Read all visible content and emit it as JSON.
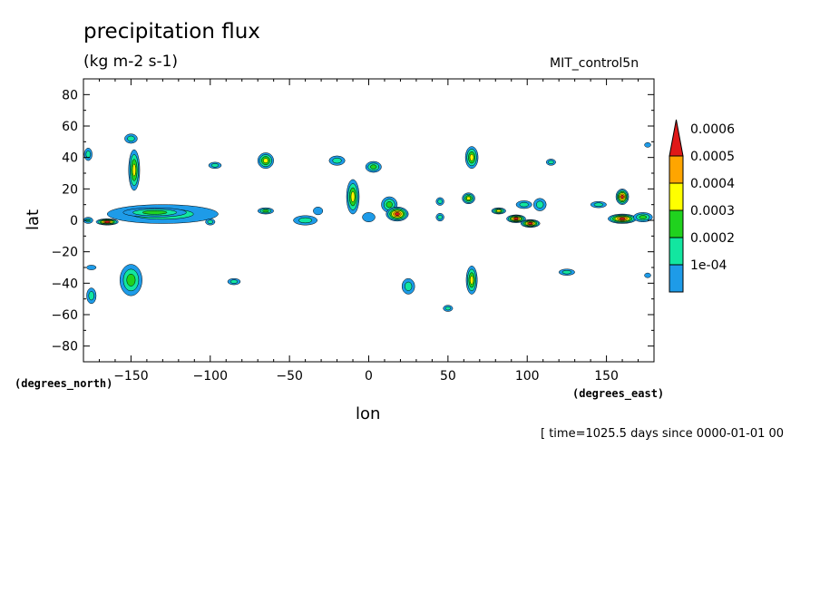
{
  "chart_data": {
    "type": "heatmap",
    "title": "precipitation flux",
    "units": "(kg m-2 s-1)",
    "dataset": "MIT_control5n",
    "xlabel": "lon",
    "ylabel": "lat",
    "xlabel_extra": "(degrees_east)",
    "ylabel_extra": "(degrees_north)",
    "timestamp": "[ time=1025.5 days since 0000-01-01 00",
    "xlim": [
      -180,
      180
    ],
    "ylim": [
      -90,
      90
    ],
    "xticks": [
      -150,
      -100,
      -50,
      0,
      50,
      100,
      150
    ],
    "yticks": [
      80,
      60,
      40,
      20,
      0,
      -20,
      -40,
      -60,
      -80
    ],
    "levels": [
      "1e-04",
      "0.0002",
      "0.0003",
      "0.0004",
      "0.0005",
      "0.0006"
    ],
    "colors": [
      "#1e9be8",
      "#12e6a0",
      "#20d21e",
      "#ffff00",
      "#ffa500",
      "#e01818"
    ],
    "blobs": [
      {
        "lon": -177,
        "lat": 42,
        "w": 5,
        "h": 8,
        "level": 1
      },
      {
        "lon": -177,
        "lat": 0,
        "w": 6,
        "h": 4,
        "level": 1
      },
      {
        "lon": -165,
        "lat": -1,
        "w": 14,
        "h": 4,
        "level": 5
      },
      {
        "lon": -148,
        "lat": 32,
        "w": 7,
        "h": 26,
        "level": 3
      },
      {
        "lon": -150,
        "lat": 52,
        "w": 8,
        "h": 6,
        "level": 1
      },
      {
        "lon": -130,
        "lat": 4,
        "w": 70,
        "h": 12,
        "level": 1
      },
      {
        "lon": -135,
        "lat": 5,
        "w": 40,
        "h": 6,
        "level": 2
      },
      {
        "lon": -100,
        "lat": -1,
        "w": 6,
        "h": 4,
        "level": 1
      },
      {
        "lon": -175,
        "lat": -48,
        "w": 6,
        "h": 10,
        "level": 1
      },
      {
        "lon": -150,
        "lat": -38,
        "w": 14,
        "h": 20,
        "level": 2
      },
      {
        "lon": -175,
        "lat": -30,
        "w": 6,
        "h": 3,
        "level": 0
      },
      {
        "lon": -97,
        "lat": 35,
        "w": 8,
        "h": 4,
        "level": 1
      },
      {
        "lon": -85,
        "lat": -39,
        "w": 8,
        "h": 4,
        "level": 1
      },
      {
        "lon": -65,
        "lat": 38,
        "w": 10,
        "h": 10,
        "level": 3
      },
      {
        "lon": -65,
        "lat": 6,
        "w": 10,
        "h": 4,
        "level": 2
      },
      {
        "lon": -40,
        "lat": 0,
        "w": 15,
        "h": 6,
        "level": 1
      },
      {
        "lon": -32,
        "lat": 6,
        "w": 6,
        "h": 5,
        "level": 0
      },
      {
        "lon": -20,
        "lat": 38,
        "w": 10,
        "h": 6,
        "level": 1
      },
      {
        "lon": -10,
        "lat": 15,
        "w": 8,
        "h": 22,
        "level": 3
      },
      {
        "lon": 3,
        "lat": 34,
        "w": 10,
        "h": 7,
        "level": 2
      },
      {
        "lon": 13,
        "lat": 10,
        "w": 10,
        "h": 10,
        "level": 2
      },
      {
        "lon": 18,
        "lat": 4,
        "w": 14,
        "h": 9,
        "level": 5
      },
      {
        "lon": 0,
        "lat": 2,
        "w": 8,
        "h": 6,
        "level": 0
      },
      {
        "lon": 25,
        "lat": -42,
        "w": 8,
        "h": 10,
        "level": 1
      },
      {
        "lon": 45,
        "lat": 12,
        "w": 5,
        "h": 5,
        "level": 1
      },
      {
        "lon": 45,
        "lat": 2,
        "w": 5,
        "h": 5,
        "level": 1
      },
      {
        "lon": 65,
        "lat": 40,
        "w": 8,
        "h": 14,
        "level": 3
      },
      {
        "lon": 63,
        "lat": 14,
        "w": 8,
        "h": 7,
        "level": 3
      },
      {
        "lon": 65,
        "lat": -38,
        "w": 7,
        "h": 18,
        "level": 3
      },
      {
        "lon": 50,
        "lat": -56,
        "w": 6,
        "h": 4,
        "level": 1
      },
      {
        "lon": 82,
        "lat": 6,
        "w": 9,
        "h": 4,
        "level": 3
      },
      {
        "lon": 93,
        "lat": 1,
        "w": 12,
        "h": 5,
        "level": 5
      },
      {
        "lon": 98,
        "lat": 10,
        "w": 10,
        "h": 5,
        "level": 1
      },
      {
        "lon": 102,
        "lat": -2,
        "w": 12,
        "h": 5,
        "level": 5
      },
      {
        "lon": 108,
        "lat": 10,
        "w": 8,
        "h": 8,
        "level": 1
      },
      {
        "lon": 115,
        "lat": 37,
        "w": 6,
        "h": 4,
        "level": 1
      },
      {
        "lon": 125,
        "lat": -33,
        "w": 10,
        "h": 4,
        "level": 1
      },
      {
        "lon": 145,
        "lat": 10,
        "w": 10,
        "h": 4,
        "level": 1
      },
      {
        "lon": 160,
        "lat": 15,
        "w": 8,
        "h": 10,
        "level": 5
      },
      {
        "lon": 160,
        "lat": 1,
        "w": 18,
        "h": 6,
        "level": 5
      },
      {
        "lon": 173,
        "lat": 2,
        "w": 12,
        "h": 6,
        "level": 2
      },
      {
        "lon": 176,
        "lat": 48,
        "w": 4,
        "h": 3,
        "level": 0
      },
      {
        "lon": 176,
        "lat": -35,
        "w": 4,
        "h": 3,
        "level": 0
      }
    ]
  }
}
